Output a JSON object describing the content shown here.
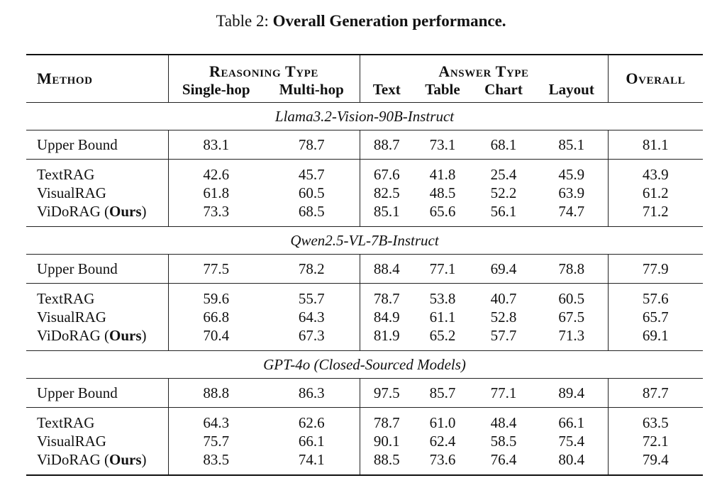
{
  "caption": {
    "label": "Table 2:",
    "title": "Overall Generation performance."
  },
  "header": {
    "method": "Method",
    "reasoning_type": "Reasoning Type",
    "answer_type": "Answer Type",
    "overall": "Overall",
    "columns": [
      "Single-hop",
      "Multi-hop",
      "Text",
      "Table",
      "Chart",
      "Layout"
    ]
  },
  "sections": [
    {
      "title": "Llama3.2-Vision-90B-Instruct",
      "upper_bound": {
        "method": "Upper Bound",
        "values": [
          "83.1",
          "78.7",
          "88.7",
          "73.1",
          "68.1",
          "85.1",
          "81.1"
        ]
      },
      "rows": [
        {
          "method": "TextRAG",
          "ours": "",
          "values": [
            "42.6",
            "45.7",
            "67.6",
            "41.8",
            "25.4",
            "45.9",
            "43.9"
          ]
        },
        {
          "method": "VisualRAG",
          "ours": "",
          "values": [
            "61.8",
            "60.5",
            "82.5",
            "48.5",
            "52.2",
            "63.9",
            "61.2"
          ]
        },
        {
          "method": "ViDoRAG (",
          "ours": "Ours",
          "close": ")",
          "values": [
            "73.3",
            "68.5",
            "85.1",
            "65.6",
            "56.1",
            "74.7",
            "71.2"
          ]
        }
      ]
    },
    {
      "title": "Qwen2.5-VL-7B-Instruct",
      "upper_bound": {
        "method": "Upper Bound",
        "values": [
          "77.5",
          "78.2",
          "88.4",
          "77.1",
          "69.4",
          "78.8",
          "77.9"
        ]
      },
      "rows": [
        {
          "method": "TextRAG",
          "ours": "",
          "values": [
            "59.6",
            "55.7",
            "78.7",
            "53.8",
            "40.7",
            "60.5",
            "57.6"
          ]
        },
        {
          "method": "VisualRAG",
          "ours": "",
          "values": [
            "66.8",
            "64.3",
            "84.9",
            "61.1",
            "52.8",
            "67.5",
            "65.7"
          ]
        },
        {
          "method": "ViDoRAG (",
          "ours": "Ours",
          "close": ")",
          "values": [
            "70.4",
            "67.3",
            "81.9",
            "65.2",
            "57.7",
            "71.3",
            "69.1"
          ]
        }
      ]
    },
    {
      "title": "GPT-4o (Closed-Sourced Models)",
      "upper_bound": {
        "method": "Upper Bound",
        "values": [
          "88.8",
          "86.3",
          "97.5",
          "85.7",
          "77.1",
          "89.4",
          "87.7"
        ]
      },
      "rows": [
        {
          "method": "TextRAG",
          "ours": "",
          "values": [
            "64.3",
            "62.6",
            "78.7",
            "61.0",
            "48.4",
            "66.1",
            "63.5"
          ]
        },
        {
          "method": "VisualRAG",
          "ours": "",
          "values": [
            "75.7",
            "66.1",
            "90.1",
            "62.4",
            "58.5",
            "75.4",
            "72.1"
          ]
        },
        {
          "method": "ViDoRAG (",
          "ours": "Ours",
          "close": ")",
          "values": [
            "83.5",
            "74.1",
            "88.5",
            "73.6",
            "76.4",
            "80.4",
            "79.4"
          ]
        }
      ]
    }
  ]
}
